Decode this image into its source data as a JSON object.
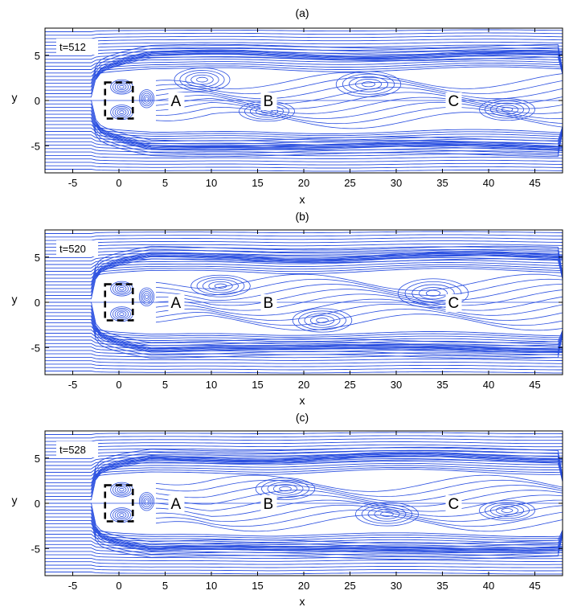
{
  "figure": {
    "xlabel": "x",
    "ylabel": "y",
    "xlim": [
      -8,
      48
    ],
    "ylim": [
      -8,
      8
    ],
    "xticks": [
      "-5",
      "0",
      "5",
      "10",
      "15",
      "20",
      "25",
      "30",
      "35",
      "40",
      "45"
    ],
    "yticks": [
      "5",
      "0",
      "-5"
    ],
    "line_color": "#2a4fe0",
    "body_box": {
      "x": [
        -1.5,
        1.5
      ],
      "y": [
        -2,
        2
      ]
    }
  },
  "panels": [
    {
      "title": "(a)",
      "time_label": "t=512",
      "points": [
        {
          "label": "A",
          "x": 5,
          "y": 0
        },
        {
          "label": "B",
          "x": 15,
          "y": 0
        },
        {
          "label": "C",
          "x": 35,
          "y": 0
        }
      ],
      "vortices": [
        {
          "x": 0.3,
          "y": 1.5,
          "rx": 1.2,
          "ry": 0.8
        },
        {
          "x": 0.3,
          "y": -1.3,
          "rx": 1.2,
          "ry": 0.8
        },
        {
          "x": 3.0,
          "y": 0.2,
          "rx": 0.8,
          "ry": 1.0
        },
        {
          "x": 9.0,
          "y": 2.3,
          "rx": 3.0,
          "ry": 1.3
        },
        {
          "x": 16.0,
          "y": -1.2,
          "rx": 3.0,
          "ry": 1.1
        },
        {
          "x": 27.0,
          "y": 1.8,
          "rx": 3.5,
          "ry": 1.4
        },
        {
          "x": 42.0,
          "y": -1.0,
          "rx": 3.0,
          "ry": 1.2
        }
      ]
    },
    {
      "title": "(b)",
      "time_label": "t=520",
      "points": [
        {
          "label": "A",
          "x": 5,
          "y": 0
        },
        {
          "label": "B",
          "x": 15,
          "y": 0
        },
        {
          "label": "C",
          "x": 35,
          "y": 0
        }
      ],
      "vortices": [
        {
          "x": 0.3,
          "y": 1.5,
          "rx": 1.2,
          "ry": 0.8
        },
        {
          "x": 0.3,
          "y": -1.3,
          "rx": 1.2,
          "ry": 0.8
        },
        {
          "x": 3.0,
          "y": 0.6,
          "rx": 0.8,
          "ry": 1.0
        },
        {
          "x": 11.0,
          "y": 1.8,
          "rx": 3.2,
          "ry": 1.2
        },
        {
          "x": 22.0,
          "y": -2.0,
          "rx": 3.2,
          "ry": 1.3
        },
        {
          "x": 34.0,
          "y": 1.0,
          "rx": 3.8,
          "ry": 1.6
        }
      ]
    },
    {
      "title": "(c)",
      "time_label": "t=528",
      "points": [
        {
          "label": "A",
          "x": 5,
          "y": 0
        },
        {
          "label": "B",
          "x": 15,
          "y": 0
        },
        {
          "label": "C",
          "x": 35,
          "y": 0
        }
      ],
      "vortices": [
        {
          "x": 0.3,
          "y": 1.5,
          "rx": 1.2,
          "ry": 0.8
        },
        {
          "x": 0.3,
          "y": -1.3,
          "rx": 1.2,
          "ry": 0.8
        },
        {
          "x": 3.0,
          "y": 0.2,
          "rx": 0.8,
          "ry": 1.0
        },
        {
          "x": 18.0,
          "y": 1.6,
          "rx": 3.2,
          "ry": 1.2
        },
        {
          "x": 29.0,
          "y": -1.2,
          "rx": 3.4,
          "ry": 1.3
        },
        {
          "x": 42.0,
          "y": -0.8,
          "rx": 3.0,
          "ry": 1.1
        }
      ]
    }
  ]
}
